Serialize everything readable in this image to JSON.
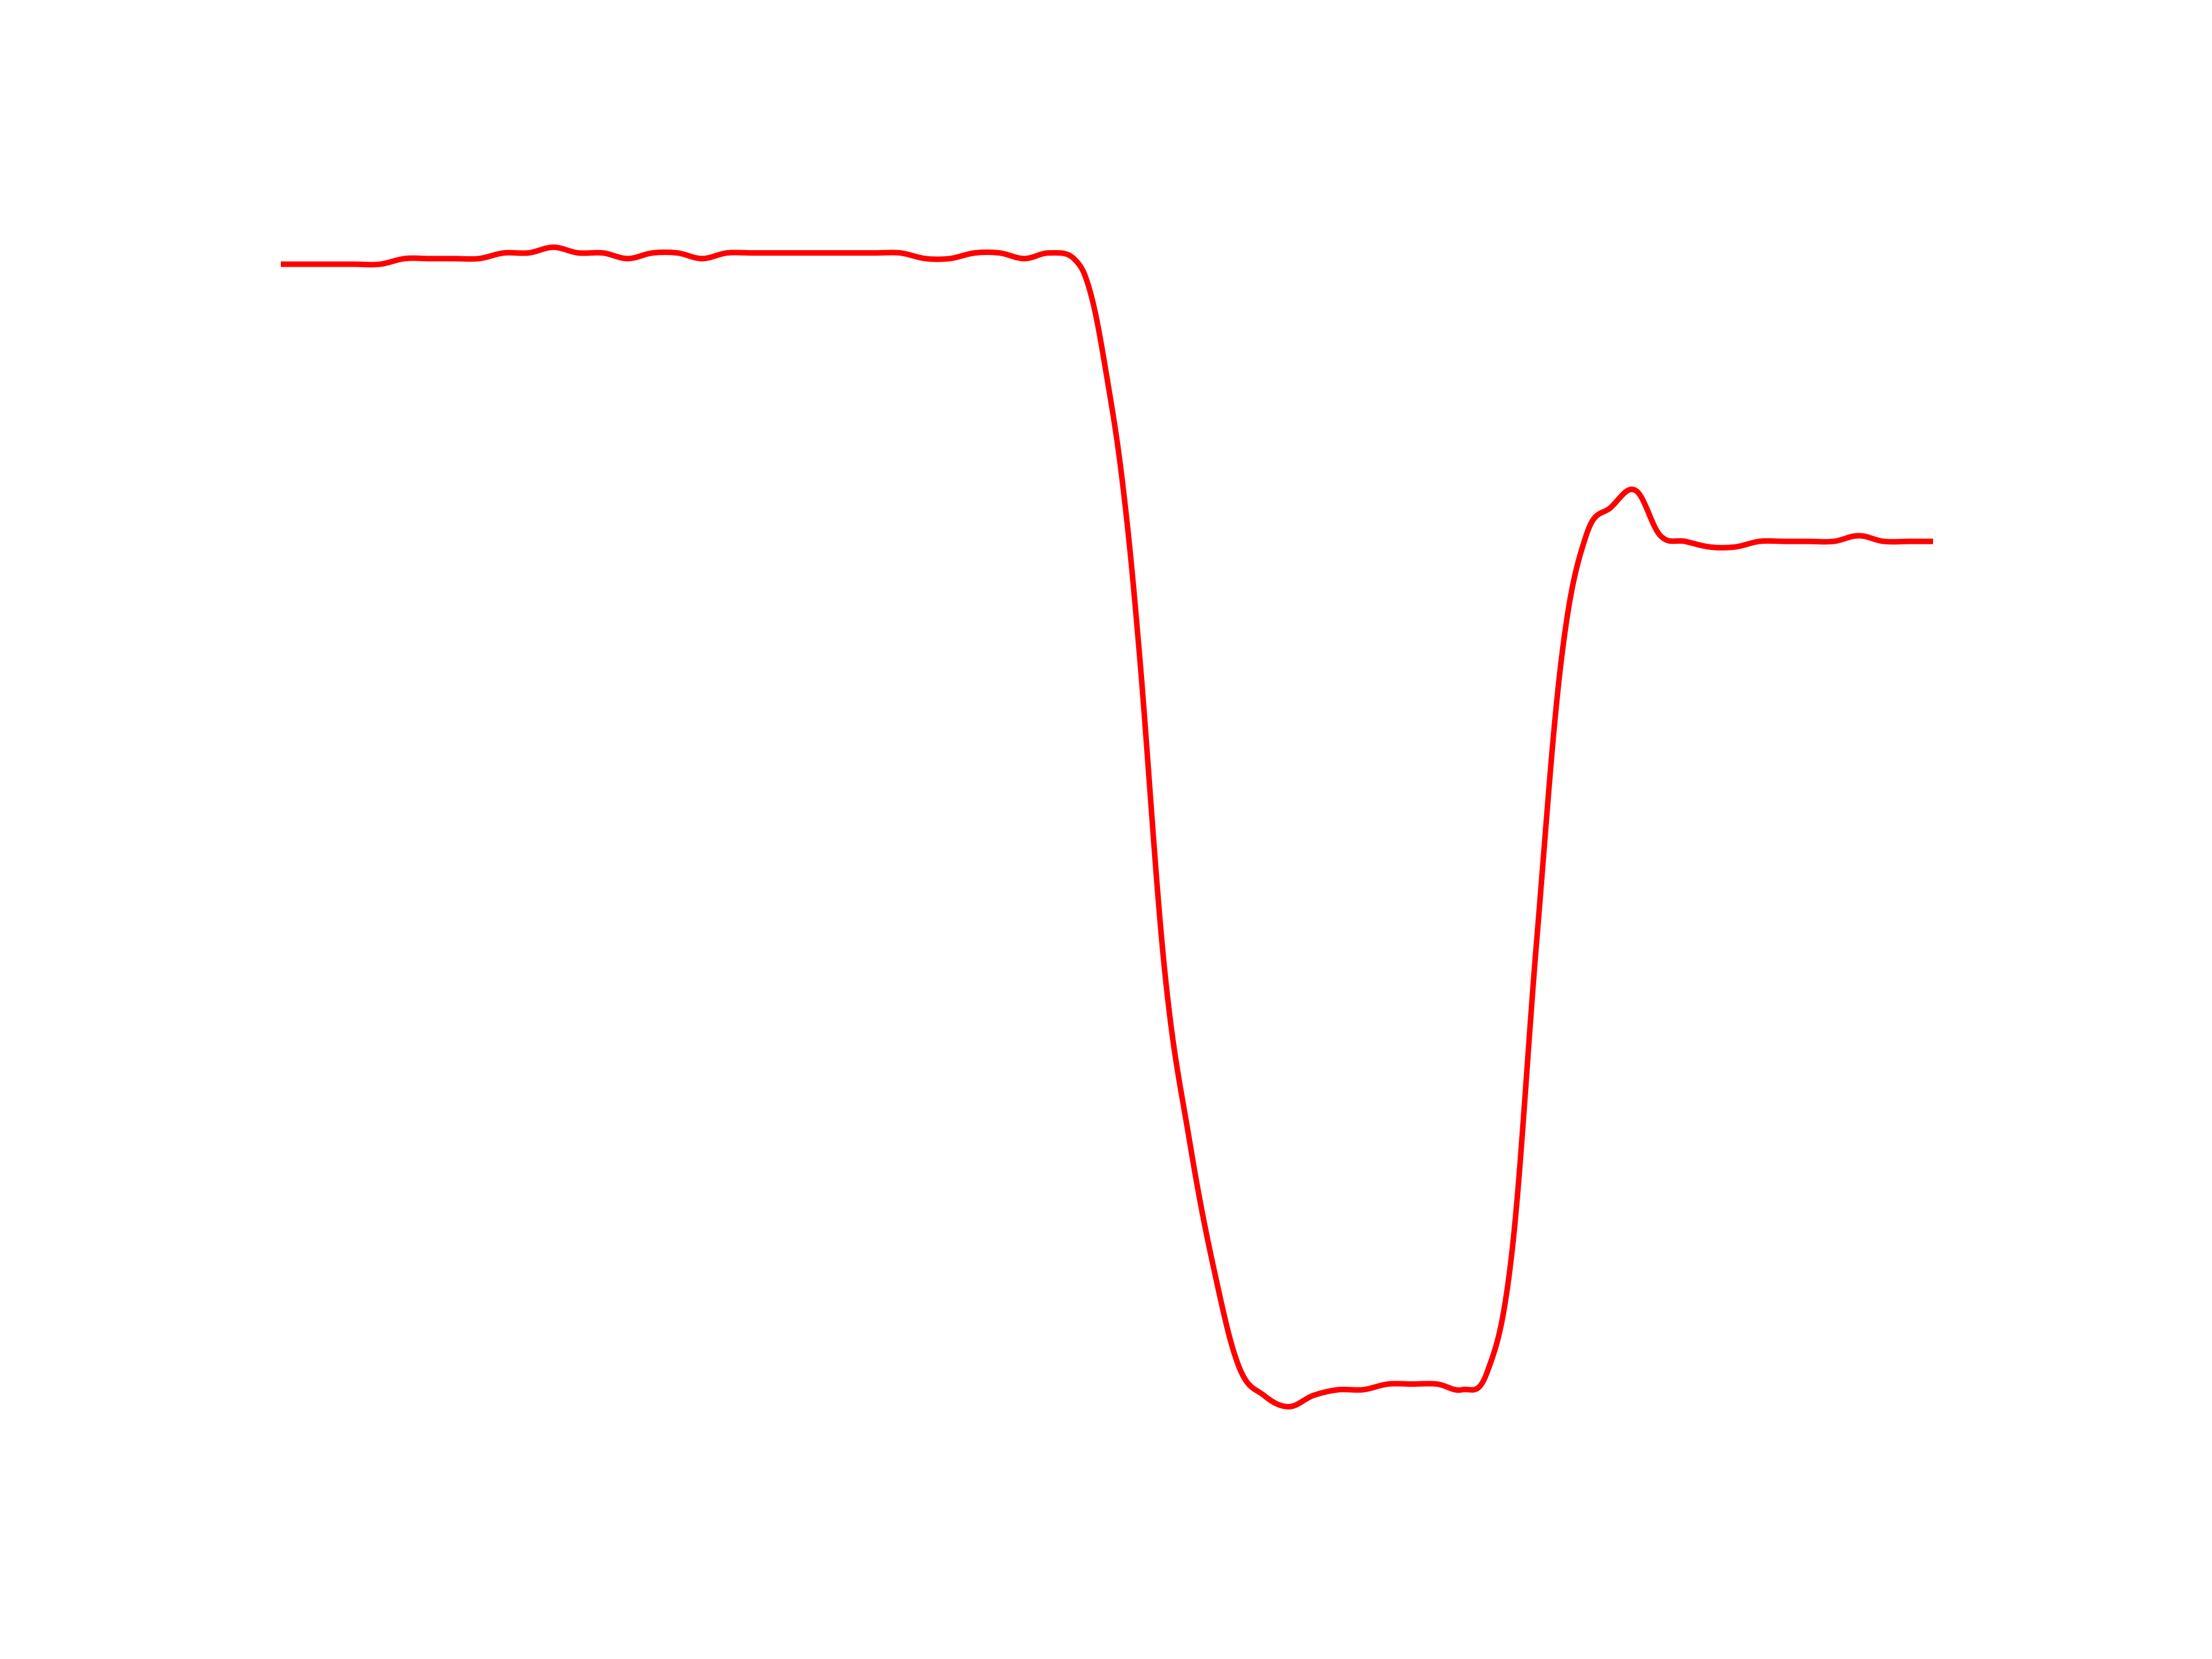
{
  "chart_data": {
    "type": "line",
    "title": "",
    "xlabel": "",
    "ylabel": "",
    "axes_visible": false,
    "grid": false,
    "legend": "none",
    "xlim": [
      0,
      100
    ],
    "ylim": [
      -1.1,
      1.1
    ],
    "series": [
      {
        "color": "#ff0000",
        "x": [
          0,
          1.5,
          3,
          4.5,
          6,
          7.5,
          9,
          10.5,
          12,
          13.5,
          15,
          16.5,
          18,
          19.5,
          21,
          22.5,
          24,
          25.5,
          27,
          28.5,
          30,
          31.5,
          33,
          34.5,
          36,
          37.5,
          39,
          40.5,
          42,
          43.5,
          45,
          46.5,
          48,
          49,
          50,
          51,
          52,
          53.5,
          55,
          56.5,
          58,
          59.5,
          61,
          62.5,
          64,
          65.5,
          67,
          68.5,
          70,
          71.5,
          73,
          74.5,
          76,
          77.5,
          79,
          80.5,
          82,
          83.5,
          85,
          86.5,
          88,
          89.5,
          91,
          92.5,
          94,
          95.5,
          97,
          98.5,
          100
        ],
        "y": [
          1.0,
          1.0,
          1.0,
          1.0,
          1.0,
          1.01,
          1.01,
          1.01,
          1.01,
          1.02,
          1.02,
          1.03,
          1.02,
          1.02,
          1.01,
          1.02,
          1.02,
          1.01,
          1.02,
          1.02,
          1.02,
          1.02,
          1.02,
          1.02,
          1.02,
          1.02,
          1.01,
          1.01,
          1.02,
          1.02,
          1.01,
          1.02,
          1.01,
          0.95,
          0.8,
          0.6,
          0.3,
          -0.25,
          -0.55,
          -0.78,
          -0.95,
          -1.0,
          -1.02,
          -1.0,
          -0.99,
          -0.99,
          -0.98,
          -0.98,
          -0.98,
          -0.99,
          -0.96,
          -0.75,
          -0.2,
          0.3,
          0.52,
          0.57,
          0.6,
          0.52,
          0.51,
          0.5,
          0.5,
          0.51,
          0.51,
          0.51,
          0.51,
          0.52,
          0.51,
          0.51,
          0.51
        ]
      }
    ]
  }
}
